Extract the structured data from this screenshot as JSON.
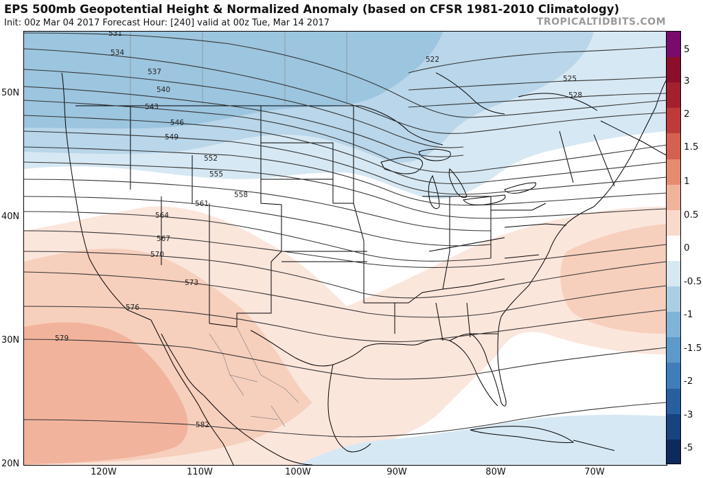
{
  "header": {
    "title": "EPS 500mb Geopotential Height & Normalized Anomaly (based on CFSR 1981-2010 Climatology)",
    "subtitle": "Init: 00z Mar 04 2017   Forecast Hour: [240]   valid at 00z Tue, Mar 14 2017",
    "credit": "TROPICALTIDBITS.COM"
  },
  "axes": {
    "lat_labels": [
      "50N",
      "40N",
      "30N",
      "20N"
    ],
    "lon_labels": [
      "120W",
      "110W",
      "100W",
      "90W",
      "80W",
      "70W"
    ]
  },
  "colorbar": {
    "labels": [
      "5",
      "3",
      "2",
      "1.5",
      "1",
      "0.5",
      "0",
      "-0.5",
      "-1",
      "-1.5",
      "-2",
      "-3",
      "-5"
    ],
    "colors": [
      "#7a0a6e",
      "#8b0f2a",
      "#a3202f",
      "#be3b3a",
      "#d4614f",
      "#e58b70",
      "#f0b39c",
      "#f8d9cb",
      "#ffffff",
      "#d6e8f2",
      "#aacfe5",
      "#7fb3d8",
      "#5d99c9",
      "#3f7eb8",
      "#28609f",
      "#17437f",
      "#0c2b5c"
    ]
  },
  "contours": {
    "labels": [
      "522",
      "525",
      "528",
      "531",
      "534",
      "537",
      "540",
      "543",
      "546",
      "549",
      "552",
      "555",
      "558",
      "561",
      "564",
      "567",
      "570",
      "573",
      "576",
      "579",
      "582"
    ]
  },
  "map": {
    "anomaly_colors": {
      "blue_strong": "#9cc5df",
      "blue_mid": "#b9d6ea",
      "blue_light": "#d6e8f3",
      "red_light": "#fbe6dc",
      "red_mid": "#f7cfbd",
      "red_strong": "#f2b39d"
    },
    "contour_color": "#333333",
    "coast_color": "#000000"
  }
}
